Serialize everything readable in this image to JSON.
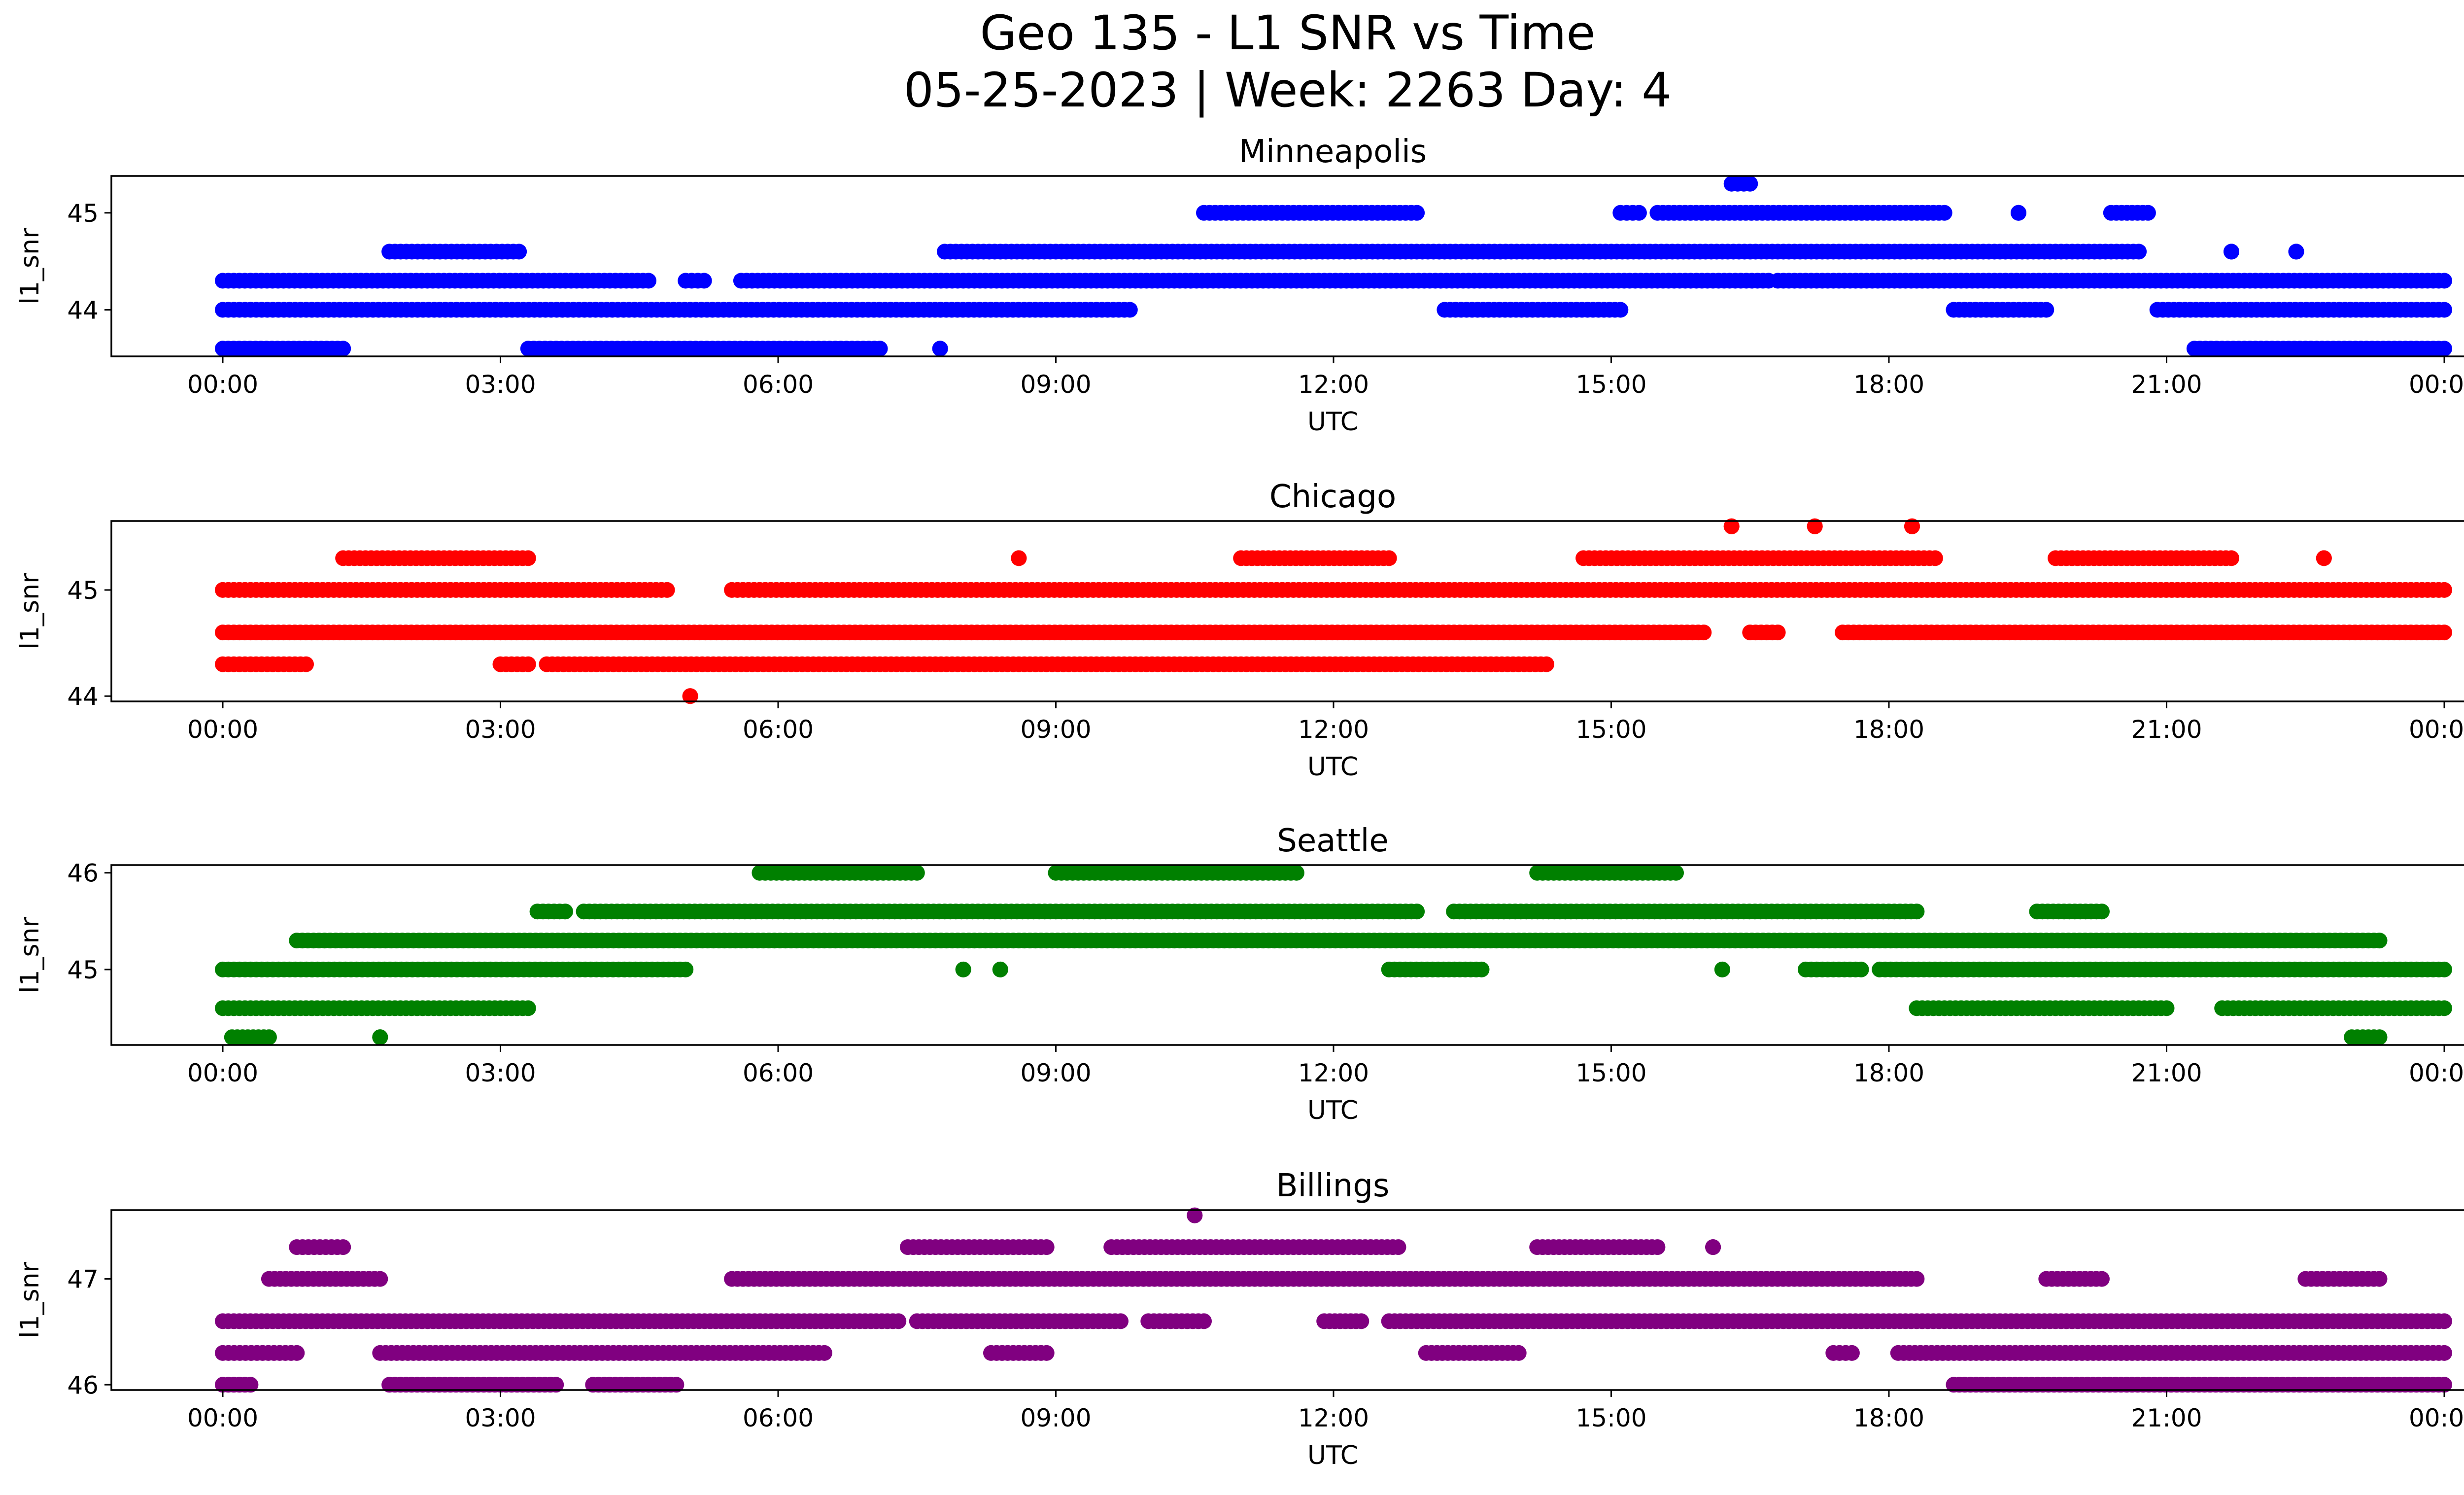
{
  "figure": {
    "title_line1": "Geo 135 - L1 SNR vs Time",
    "title_line2": "05-25-2023 | Week: 2263 Day: 4"
  },
  "chart_data": [
    {
      "type": "scatter",
      "title": "Minneapolis",
      "xlabel": "UTC",
      "ylabel": "l1_snr",
      "color": "#0000ff",
      "xlim_hours": [
        -1.2,
        25.2
      ],
      "ylim": [
        43.52,
        45.38
      ],
      "yticks": [
        44,
        45
      ],
      "xticks": [
        "00:00",
        "03:00",
        "06:00",
        "09:00",
        "12:00",
        "15:00",
        "18:00",
        "21:00",
        "00:00"
      ],
      "series": [
        {
          "y": 43.6,
          "segments": [
            [
              0.0,
              1.3
            ],
            [
              3.3,
              7.1
            ],
            [
              7.75,
              7.75
            ],
            [
              21.3,
              24.0
            ]
          ]
        },
        {
          "y": 44.0,
          "segments": [
            [
              0.0,
              9.8
            ],
            [
              13.2,
              15.1
            ],
            [
              18.7,
              19.7
            ],
            [
              20.9,
              24.0
            ]
          ]
        },
        {
          "y": 44.3,
          "segments": [
            [
              0.0,
              4.6
            ],
            [
              5.0,
              5.2
            ],
            [
              5.6,
              16.7
            ],
            [
              16.8,
              24.0
            ]
          ]
        },
        {
          "y": 44.6,
          "segments": [
            [
              1.8,
              3.2
            ],
            [
              7.8,
              20.7
            ],
            [
              21.7,
              21.7
            ],
            [
              22.4,
              22.4
            ]
          ]
        },
        {
          "y": 45.0,
          "segments": [
            [
              10.6,
              12.9
            ],
            [
              15.1,
              15.3
            ],
            [
              15.5,
              18.6
            ],
            [
              19.4,
              19.4
            ],
            [
              20.4,
              20.8
            ]
          ]
        },
        {
          "y": 45.3,
          "segments": [
            [
              16.3,
              16.5
            ]
          ]
        }
      ]
    },
    {
      "type": "scatter",
      "title": "Chicago",
      "xlabel": "UTC",
      "ylabel": "l1_snr",
      "color": "#ff0000",
      "xlim_hours": [
        -1.2,
        25.2
      ],
      "ylim": [
        43.95,
        45.65
      ],
      "yticks": [
        44,
        45
      ],
      "xticks": [
        "00:00",
        "03:00",
        "06:00",
        "09:00",
        "12:00",
        "15:00",
        "18:00",
        "21:00",
        "00:00"
      ],
      "series": [
        {
          "y": 44.0,
          "segments": [
            [
              5.05,
              5.05
            ]
          ]
        },
        {
          "y": 44.3,
          "segments": [
            [
              0.0,
              0.9
            ],
            [
              3.0,
              3.3
            ],
            [
              3.5,
              14.3
            ]
          ]
        },
        {
          "y": 44.6,
          "segments": [
            [
              0.0,
              16.0
            ],
            [
              16.5,
              16.8
            ],
            [
              17.5,
              18.4
            ],
            [
              18.4,
              24.0
            ]
          ]
        },
        {
          "y": 45.0,
          "segments": [
            [
              0.0,
              4.8
            ],
            [
              5.5,
              24.0
            ]
          ]
        },
        {
          "y": 45.3,
          "segments": [
            [
              1.3,
              3.3
            ],
            [
              8.6,
              8.6
            ],
            [
              11.0,
              12.6
            ],
            [
              14.7,
              18.5
            ],
            [
              19.8,
              21.7
            ],
            [
              22.7,
              22.7
            ]
          ]
        },
        {
          "y": 45.6,
          "segments": [
            [
              16.3,
              16.3
            ],
            [
              17.2,
              17.2
            ],
            [
              18.25,
              18.25
            ]
          ]
        }
      ]
    },
    {
      "type": "scatter",
      "title": "Seattle",
      "xlabel": "UTC",
      "ylabel": "l1_snr",
      "color": "#008000",
      "xlim_hours": [
        -1.2,
        25.2
      ],
      "ylim": [
        44.22,
        46.08
      ],
      "yticks": [
        45,
        46
      ],
      "xticks": [
        "00:00",
        "03:00",
        "06:00",
        "09:00",
        "12:00",
        "15:00",
        "18:00",
        "21:00",
        "00:00"
      ],
      "series": [
        {
          "y": 44.3,
          "segments": [
            [
              0.1,
              0.5
            ],
            [
              1.7,
              1.7
            ],
            [
              23.0,
              23.3
            ]
          ]
        },
        {
          "y": 44.6,
          "segments": [
            [
              0.0,
              3.3
            ],
            [
              18.3,
              21.0
            ],
            [
              21.6,
              24.0
            ]
          ]
        },
        {
          "y": 45.0,
          "segments": [
            [
              0.0,
              5.0
            ],
            [
              8.0,
              8.0
            ],
            [
              8.4,
              8.4
            ],
            [
              12.6,
              13.6
            ],
            [
              16.2,
              16.2
            ],
            [
              17.1,
              17.7
            ],
            [
              17.9,
              24.0
            ]
          ]
        },
        {
          "y": 45.3,
          "segments": [
            [
              0.8,
              23.3
            ]
          ]
        },
        {
          "y": 45.6,
          "segments": [
            [
              3.4,
              3.7
            ],
            [
              3.9,
              12.9
            ],
            [
              13.3,
              18.3
            ],
            [
              19.6,
              20.3
            ]
          ]
        },
        {
          "y": 46.0,
          "segments": [
            [
              5.8,
              7.5
            ],
            [
              9.0,
              11.6
            ],
            [
              14.2,
              15.7
            ]
          ]
        }
      ]
    },
    {
      "type": "scatter",
      "title": "Billings",
      "xlabel": "UTC",
      "ylabel": "l1_snr",
      "color": "#800080",
      "xlim_hours": [
        -1.2,
        25.2
      ],
      "ylim": [
        45.95,
        47.65
      ],
      "yticks": [
        46,
        47
      ],
      "xticks": [
        "00:00",
        "03:00",
        "06:00",
        "09:00",
        "12:00",
        "15:00",
        "18:00",
        "21:00",
        "00:00"
      ],
      "series": [
        {
          "y": 46.0,
          "segments": [
            [
              0.0,
              0.3
            ],
            [
              1.8,
              3.6
            ],
            [
              4.0,
              4.9
            ],
            [
              18.7,
              24.0
            ]
          ]
        },
        {
          "y": 46.3,
          "segments": [
            [
              0.0,
              0.8
            ],
            [
              1.7,
              6.5
            ],
            [
              8.3,
              8.9
            ],
            [
              13.0,
              14.0
            ],
            [
              17.4,
              17.6
            ],
            [
              18.1,
              24.0
            ]
          ]
        },
        {
          "y": 46.6,
          "segments": [
            [
              0.0,
              7.3
            ],
            [
              7.5,
              9.7
            ],
            [
              10.0,
              10.6
            ],
            [
              11.9,
              12.3
            ],
            [
              12.6,
              24.0
            ]
          ]
        },
        {
          "y": 47.0,
          "segments": [
            [
              0.5,
              1.7
            ],
            [
              5.5,
              18.3
            ],
            [
              19.7,
              20.3
            ],
            [
              22.5,
              23.3
            ]
          ]
        },
        {
          "y": 47.3,
          "segments": [
            [
              0.8,
              1.3
            ],
            [
              7.4,
              8.9
            ],
            [
              9.6,
              12.7
            ],
            [
              14.2,
              15.5
            ],
            [
              16.1,
              16.1
            ]
          ]
        },
        {
          "y": 47.6,
          "segments": [
            [
              10.5,
              10.5
            ]
          ]
        }
      ]
    }
  ]
}
